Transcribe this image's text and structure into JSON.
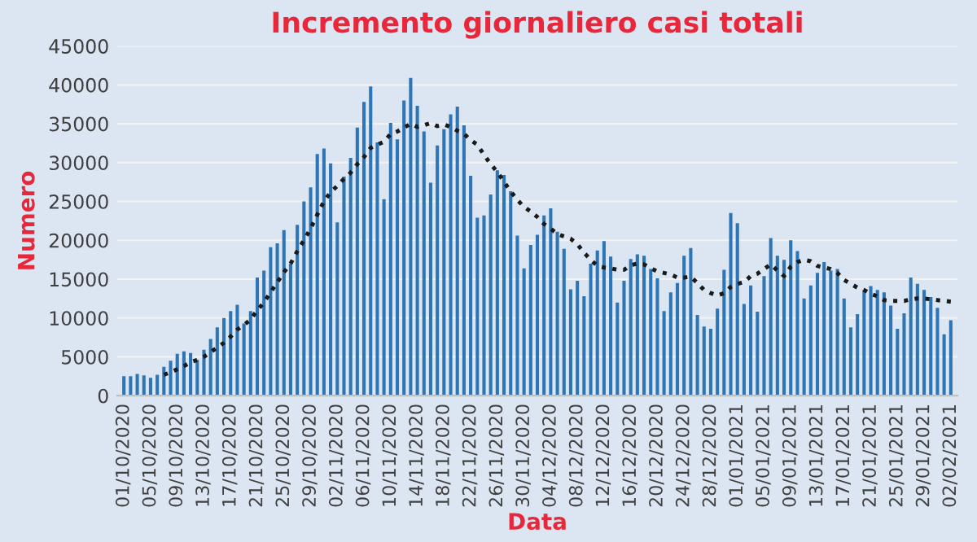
{
  "chart_data": {
    "type": "bar",
    "title": "Incremento giornaliero casi totali",
    "xlabel": "Data",
    "ylabel": "Numero",
    "categories": [
      "01/10/2020",
      null,
      null,
      null,
      "05/10/2020",
      null,
      null,
      null,
      "09/10/2020",
      null,
      null,
      null,
      "13/10/2020",
      null,
      null,
      null,
      "17/10/2020",
      null,
      null,
      null,
      "21/10/2020",
      null,
      null,
      null,
      "25/10/2020",
      null,
      null,
      null,
      "29/10/2020",
      null,
      null,
      null,
      "02/11/2020",
      null,
      null,
      null,
      "06/11/2020",
      null,
      null,
      null,
      "10/11/2020",
      null,
      null,
      null,
      "14/11/2020",
      null,
      null,
      null,
      "18/11/2020",
      null,
      null,
      null,
      "22/11/2020",
      null,
      null,
      null,
      "26/11/2020",
      null,
      null,
      null,
      "30/11/2020",
      null,
      null,
      null,
      "04/12/2020",
      null,
      null,
      null,
      "08/12/2020",
      null,
      null,
      null,
      "12/12/2020",
      null,
      null,
      null,
      "16/12/2020",
      null,
      null,
      null,
      "20/12/2020",
      null,
      null,
      null,
      "24/12/2020",
      null,
      null,
      null,
      "28/12/2020",
      null,
      null,
      null,
      "01/01/2021",
      null,
      null,
      null,
      "05/01/2021",
      null,
      null,
      null,
      "09/01/2021",
      null,
      null,
      null,
      "13/01/2021",
      null,
      null,
      null,
      "17/01/2021",
      null,
      null,
      null,
      "21/01/2021",
      null,
      null,
      null,
      "25/01/2021",
      null,
      null,
      null,
      "29/01/2021",
      null,
      null,
      null,
      "02/02/2021"
    ],
    "series": [
      {
        "color": "#2e75b6",
        "values": [
          2500,
          2500,
          2800,
          2600,
          2300,
          2700,
          3700,
          4500,
          5400,
          5700,
          5500,
          4600,
          5900,
          7300,
          8800,
          10000,
          10900,
          11700,
          9300,
          10900,
          15200,
          16100,
          19100,
          19600,
          21300,
          17000,
          22000,
          25000,
          26800,
          31100,
          31800,
          29900,
          22300,
          28200,
          30600,
          34500,
          37800,
          39800,
          32600,
          25300,
          35100,
          33000,
          38000,
          40900,
          37300,
          34000,
          27400,
          32200,
          34300,
          36200,
          37200,
          34800,
          28300,
          22900,
          23200,
          25900,
          29000,
          28400,
          26300,
          20600,
          16400,
          19400,
          20700,
          23200,
          24100,
          21100,
          18900,
          13700,
          14800,
          12800,
          17000,
          18700,
          19900,
          17900,
          12000,
          14800,
          17600,
          18200,
          18000,
          16300,
          15100,
          10900,
          13300,
          14500,
          18000,
          19000,
          10400,
          8900,
          8600,
          11200,
          16200,
          23500,
          22200,
          11800,
          14200,
          10800,
          15400,
          20300,
          18000,
          17500,
          20000,
          18600,
          12500,
          14200,
          15800,
          17200,
          16100,
          16300,
          12500,
          8800,
          10500,
          13600,
          14100,
          13600,
          13300,
          11600,
          8600,
          10600,
          15200,
          14400,
          13600,
          12700,
          11300,
          7900,
          9700
        ]
      },
      {
        "type": "line",
        "color": "#1a1a1a",
        "line_style": "dotted",
        "marker": "none",
        "values": [
          null,
          null,
          null,
          null,
          null,
          null,
          2700,
          3000,
          3400,
          3800,
          4300,
          4600,
          5000,
          5600,
          6200,
          6800,
          7600,
          8500,
          9100,
          9800,
          11000,
          12000,
          13300,
          14600,
          15900,
          17000,
          18600,
          20000,
          21500,
          23300,
          25000,
          26200,
          27000,
          27900,
          28700,
          29800,
          30700,
          31900,
          32300,
          32700,
          33700,
          34000,
          34500,
          35000,
          34600,
          34800,
          35100,
          34700,
          34900,
          34600,
          34100,
          33700,
          32900,
          32300,
          31000,
          29800,
          28800,
          27500,
          26300,
          25200,
          24300,
          23700,
          23000,
          22100,
          21500,
          20800,
          20500,
          20200,
          19500,
          18400,
          17500,
          16700,
          16500,
          16400,
          16200,
          16200,
          16800,
          17000,
          16900,
          16400,
          16000,
          15800,
          15600,
          15200,
          15200,
          15300,
          14500,
          13600,
          13200,
          12900,
          13200,
          14000,
          14400,
          14600,
          15400,
          15700,
          16300,
          16900,
          16100,
          15400,
          16600,
          17200,
          17500,
          17300,
          16700,
          16500,
          16300,
          15800,
          14900,
          14400,
          13900,
          13600,
          13100,
          12800,
          12300,
          12200,
          12200,
          12200,
          12400,
          12500,
          12500,
          12400,
          12300,
          12200,
          12100
        ]
      }
    ],
    "ylim": [
      0,
      45000
    ],
    "yticks": [
      0,
      5000,
      10000,
      15000,
      20000,
      25000,
      30000,
      35000,
      40000,
      45000
    ],
    "grid": "y"
  }
}
